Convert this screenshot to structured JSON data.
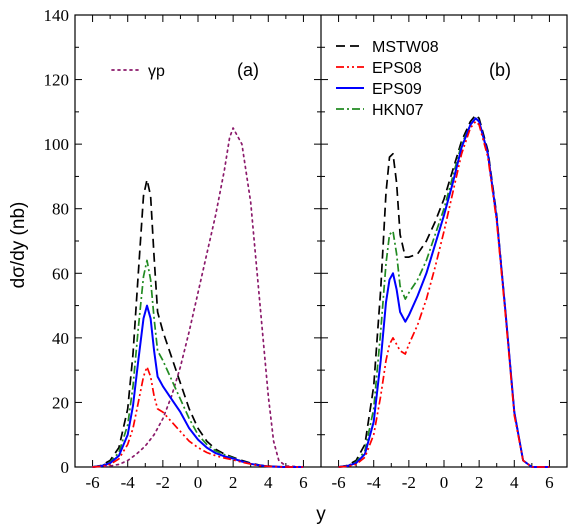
{
  "chart_data": {
    "type": "line",
    "xlabel": "y",
    "ylabel": "dσ/dy (nb)",
    "xlim": [
      -7,
      7
    ],
    "ylim": [
      0,
      140
    ],
    "yticks": [
      0,
      20,
      40,
      60,
      80,
      100,
      120,
      140
    ],
    "xticks": [
      -6,
      -4,
      -2,
      0,
      2,
      4,
      6
    ],
    "panels": [
      {
        "label": "(a)",
        "legend": [
          "γp"
        ],
        "series": [
          {
            "name": "γp",
            "color": "#8b1a6b",
            "style": "dotted",
            "x": [
              -6,
              -5,
              -4.5,
              -4,
              -3.5,
              -3,
              -2.5,
              -2,
              -1.5,
              -1,
              -0.5,
              0,
              0.5,
              1,
              1.5,
              1.8,
              2,
              2.5,
              3,
              3.5,
              4,
              4.3,
              4.6,
              5,
              6
            ],
            "y": [
              0,
              0.3,
              0.8,
              2,
              4,
              6.5,
              10,
              15,
              22,
              31,
              42,
              54,
              66,
              78,
              92,
              102,
              105,
              100,
              82,
              52,
              22,
              8,
              2,
              0.3,
              0
            ]
          },
          {
            "name": "MSTW08",
            "color": "#000000",
            "style": "dashed",
            "x": [
              -6,
              -5.5,
              -5,
              -4.5,
              -4,
              -3.7,
              -3.4,
              -3.1,
              -2.9,
              -2.7,
              -2.5,
              -2.3,
              -2,
              -1.5,
              -1,
              -0.5,
              0,
              0.5,
              1,
              1.5,
              2,
              2.5,
              3,
              3.5,
              4,
              4.5,
              5,
              6
            ],
            "y": [
              0,
              0.5,
              2,
              6,
              18,
              35,
              60,
              84,
              89,
              84,
              65,
              48,
              42,
              34,
              26,
              18,
              12,
              8,
              5.5,
              4,
              3,
              2,
              1.2,
              0.6,
              0.3,
              0.1,
              0,
              0
            ]
          },
          {
            "name": "HKN07",
            "color": "#228b22",
            "style": "dashdot",
            "x": [
              -6,
              -5.5,
              -5,
              -4.5,
              -4,
              -3.7,
              -3.4,
              -3.1,
              -2.9,
              -2.7,
              -2.5,
              -2.3,
              -2,
              -1.5,
              -1,
              -0.5,
              0,
              0.5,
              1,
              1.5,
              2,
              2.5,
              3,
              3.5,
              4,
              4.5,
              5,
              6
            ],
            "y": [
              0,
              0.4,
              1.5,
              4.5,
              13,
              25,
              43,
              59,
              64,
              58,
              46,
              36,
              33,
              27,
              21,
              15,
              10,
              7,
              5,
              3.8,
              2.8,
              1.8,
              1,
              0.5,
              0.2,
              0.1,
              0,
              0
            ]
          },
          {
            "name": "EPS09",
            "color": "#0000ff",
            "style": "solid",
            "x": [
              -6,
              -5.5,
              -5,
              -4.5,
              -4,
              -3.7,
              -3.4,
              -3.1,
              -2.9,
              -2.7,
              -2.5,
              -2.3,
              -2,
              -1.5,
              -1,
              -0.5,
              0,
              0.5,
              1,
              1.5,
              2,
              2.5,
              3,
              3.5,
              4,
              4.5,
              5,
              6
            ],
            "y": [
              0,
              0.3,
              1.2,
              3.5,
              10,
              19,
              33,
              46,
              50,
              46,
              36,
              28,
              25,
              21,
              17,
              12,
              8.5,
              6,
              4.3,
              3.3,
              2.6,
              1.7,
              1,
              0.5,
              0.2,
              0.1,
              0,
              0
            ]
          },
          {
            "name": "EPS08",
            "color": "#ff0000",
            "style": "dashdotdot",
            "x": [
              -6,
              -5.5,
              -5,
              -4.5,
              -4,
              -3.7,
              -3.4,
              -3.1,
              -2.9,
              -2.7,
              -2.5,
              -2.3,
              -2,
              -1.5,
              -1,
              -0.5,
              0,
              0.5,
              1,
              1.5,
              2,
              2.5,
              3,
              3.5,
              4,
              4.5,
              5,
              6
            ],
            "y": [
              0,
              0.2,
              0.8,
              2.5,
              7,
              12,
              20,
              28,
              31,
              28,
              22,
              18,
              17,
              14,
              11,
              8,
              6,
              4.5,
              3.5,
              2.8,
              2.2,
              1.5,
              0.9,
              0.4,
              0.2,
              0.1,
              0,
              0
            ]
          }
        ]
      },
      {
        "label": "(b)",
        "legend": [
          "MSTW08",
          "EPS08",
          "EPS09",
          "HKN07"
        ],
        "series": [
          {
            "name": "MSTW08",
            "color": "#000000",
            "style": "dashed",
            "x": [
              -6,
              -5.5,
              -5,
              -4.5,
              -4,
              -3.6,
              -3.3,
              -3.1,
              -2.9,
              -2.7,
              -2.5,
              -2.2,
              -2,
              -1.5,
              -1,
              -0.5,
              0,
              0.5,
              1,
              1.5,
              1.8,
              2,
              2.5,
              3,
              3.5,
              4,
              4.5,
              5,
              6
            ],
            "y": [
              0,
              0.5,
              2,
              7,
              25,
              55,
              85,
              96,
              97,
              88,
              72,
              65,
              65,
              66,
              70,
              76,
              83,
              92,
              101,
              107,
              109,
              108,
              98,
              78,
              48,
              17,
              2,
              0,
              0
            ]
          },
          {
            "name": "HKN07",
            "color": "#228b22",
            "style": "dashdot",
            "x": [
              -6,
              -5.5,
              -5,
              -4.5,
              -4,
              -3.6,
              -3.3,
              -3.1,
              -2.9,
              -2.7,
              -2.5,
              -2.2,
              -2,
              -1.5,
              -1,
              -0.5,
              0,
              0.5,
              1,
              1.5,
              1.8,
              2,
              2.5,
              3,
              3.5,
              4,
              4.5,
              5,
              6
            ],
            "y": [
              0,
              0.4,
              1.5,
              5,
              18,
              42,
              63,
              72,
              73,
              66,
              56,
              52,
              54,
              58,
              64,
              72,
              80,
              90,
              100,
              106,
              108,
              107,
              97,
              77,
              48,
              17,
              2,
              0,
              0
            ]
          },
          {
            "name": "EPS09",
            "color": "#0000ff",
            "style": "solid",
            "x": [
              -6,
              -5.5,
              -5,
              -4.5,
              -4,
              -3.6,
              -3.3,
              -3.1,
              -2.9,
              -2.7,
              -2.5,
              -2.2,
              -2,
              -1.5,
              -1,
              -0.5,
              0,
              0.5,
              1,
              1.5,
              1.8,
              2,
              2.5,
              3,
              3.5,
              4,
              4.5,
              5,
              6
            ],
            "y": [
              0,
              0.3,
              1.2,
              4,
              14,
              33,
              51,
              58,
              60,
              55,
              48,
              45,
              47,
              53,
              60,
              69,
              78,
              88,
              99,
              106,
              108,
              107,
              97,
              77,
              48,
              17,
              2,
              0,
              0
            ]
          },
          {
            "name": "EPS08",
            "color": "#ff0000",
            "style": "dashdotdot",
            "x": [
              -6,
              -5.5,
              -5,
              -4.5,
              -4,
              -3.6,
              -3.3,
              -3.1,
              -2.9,
              -2.7,
              -2.5,
              -2.2,
              -2,
              -1.5,
              -1,
              -0.5,
              0,
              0.5,
              1,
              1.5,
              1.8,
              2,
              2.5,
              3,
              3.5,
              4,
              4.5,
              5,
              6
            ],
            "y": [
              0,
              0.2,
              0.8,
              3,
              10,
              22,
              33,
              38,
              40,
              38,
              36,
              35,
              38,
              44,
              52,
              62,
              73,
              85,
              97,
              105,
              107,
              106,
              96,
              76,
              47,
              16,
              2,
              0,
              0
            ]
          }
        ]
      }
    ]
  }
}
